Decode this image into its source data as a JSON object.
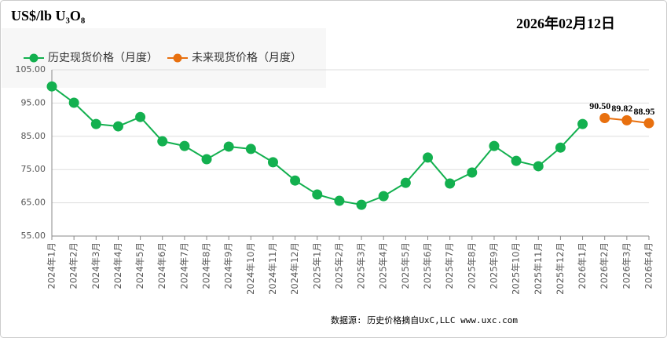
{
  "chart_data": {
    "type": "line",
    "title": "US$/lb U₃O₈",
    "date": "2026年02月12日",
    "source": "数据源: 历史价格摘自UxC,LLC  www.uxc.com",
    "categories": [
      "2024年1月",
      "2024年2月",
      "2024年3月",
      "2024年4月",
      "2024年5月",
      "2024年6月",
      "2024年7月",
      "2024年8月",
      "2024年9月",
      "2024年10月",
      "2024年11月",
      "2024年12月",
      "2025年1月",
      "2025年2月",
      "2025年3月",
      "2025年4月",
      "2025年5月",
      "2025年6月",
      "2025年7月",
      "2025年8月",
      "2025年9月",
      "2025年10月",
      "2025年11月",
      "2025年12月",
      "2026年1月",
      "2026年2月",
      "2026年3月",
      "2026年4月"
    ],
    "series": [
      {
        "name": "历史现货价格（月度）",
        "color": "#13b04f",
        "values": [
          100.0,
          95.1,
          88.7,
          88.0,
          90.8,
          83.5,
          82.1,
          78.1,
          81.9,
          81.2,
          77.2,
          71.7,
          67.5,
          65.6,
          64.4,
          67.0,
          71.0,
          78.6,
          70.8,
          74.1,
          82.1,
          77.6,
          76.0,
          81.6,
          88.7,
          null,
          null,
          null
        ]
      },
      {
        "name": "未来现货价格（月度）",
        "color": "#e8700f",
        "values": [
          null,
          null,
          null,
          null,
          null,
          null,
          null,
          null,
          null,
          null,
          null,
          null,
          null,
          null,
          null,
          null,
          null,
          null,
          null,
          null,
          null,
          null,
          null,
          null,
          null,
          90.5,
          89.82,
          88.95
        ],
        "value_labels": [
          null,
          null,
          null,
          null,
          null,
          null,
          null,
          null,
          null,
          null,
          null,
          null,
          null,
          null,
          null,
          null,
          null,
          null,
          null,
          null,
          null,
          null,
          null,
          null,
          null,
          "90.50",
          "89.82",
          "88.95"
        ]
      }
    ],
    "ylim": [
      55,
      105
    ],
    "yticks": [
      {
        "value": 55,
        "label": "55.00"
      },
      {
        "value": 65,
        "label": "65.00"
      },
      {
        "value": 75,
        "label": "75.00"
      },
      {
        "value": 85,
        "label": "85.00"
      },
      {
        "value": 95,
        "label": "95.00"
      },
      {
        "value": 105,
        "label": "105.00"
      }
    ],
    "grid": true,
    "legend": "top-left"
  }
}
